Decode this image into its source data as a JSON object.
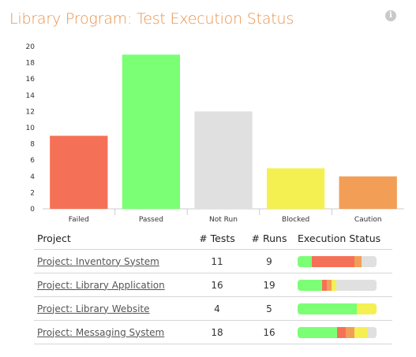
{
  "header": {
    "title": "Library Program: Test Execution Status",
    "info_icon": "info-icon"
  },
  "colors": {
    "title": "#E8924C",
    "failed": "#F47157",
    "passed": "#7BFF74",
    "not_run": "#E0E0E0",
    "blocked": "#F4F052",
    "caution": "#F29E57"
  },
  "chart_data": {
    "type": "bar",
    "categories": [
      "Failed",
      "Passed",
      "Not Run",
      "Blocked",
      "Caution"
    ],
    "values": [
      9,
      19,
      12,
      5,
      4
    ],
    "colors": [
      "#F47157",
      "#7BFF74",
      "#E0E0E0",
      "#F4F052",
      "#F29E57"
    ],
    "title": "",
    "xlabel": "",
    "ylabel": "",
    "ylim": [
      0,
      20
    ],
    "yticks": [
      0,
      2,
      4,
      6,
      8,
      10,
      12,
      14,
      16,
      18,
      20
    ],
    "grid": false
  },
  "table": {
    "headers": {
      "project": "Project",
      "tests": "# Tests",
      "runs": "# Runs",
      "status": "Execution Status"
    },
    "rows": [
      {
        "project": "Project: Inventory System",
        "tests": "11",
        "runs": "9",
        "status": [
          [
            "passed",
            0.18
          ],
          [
            "failed",
            0.54
          ],
          [
            "caution",
            0.09
          ],
          [
            "not_run",
            0.19
          ]
        ]
      },
      {
        "project": "Project: Library Application",
        "tests": "16",
        "runs": "19",
        "status": [
          [
            "passed",
            0.31
          ],
          [
            "failed",
            0.06
          ],
          [
            "caution",
            0.06
          ],
          [
            "blocked",
            0.06
          ],
          [
            "not_run",
            0.51
          ]
        ]
      },
      {
        "project": "Project: Library Website",
        "tests": "4",
        "runs": "5",
        "status": [
          [
            "passed",
            0.75
          ],
          [
            "blocked",
            0.25
          ]
        ]
      },
      {
        "project": "Project: Messaging System",
        "tests": "18",
        "runs": "16",
        "status": [
          [
            "passed",
            0.5
          ],
          [
            "failed",
            0.11
          ],
          [
            "caution",
            0.11
          ],
          [
            "blocked",
            0.17
          ],
          [
            "not_run",
            0.11
          ]
        ]
      }
    ]
  }
}
